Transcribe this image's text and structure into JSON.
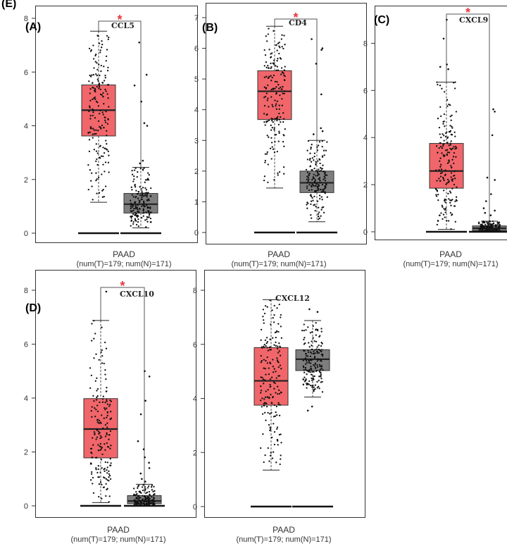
{
  "figure": {
    "letter": "(E)",
    "category": "PAAD",
    "sample_note": "(num(T)=179; num(N)=171)",
    "sig_symbol": "*",
    "colors": {
      "tumor": "#f1666a",
      "normal": "#7e7e7e",
      "sig": "#e8383d",
      "frame": "#333333",
      "points": "#111111"
    }
  },
  "chart_data": [
    {
      "type": "boxplot",
      "panel_label": "(A)",
      "gene": "CCL5",
      "ylim": [
        0,
        8
      ],
      "yticks": [
        0,
        2,
        4,
        6,
        8
      ],
      "significant": true,
      "groups": [
        {
          "group": "T",
          "n": 179,
          "min": 1.15,
          "q1": 3.62,
          "median": 4.58,
          "q3": 5.52,
          "max": 7.52,
          "outliers": [],
          "zero_line": true
        },
        {
          "group": "N",
          "n": 171,
          "min": 0.2,
          "q1": 0.75,
          "median": 1.08,
          "q3": 1.48,
          "max": 2.45,
          "outliers": [
            7.1,
            5.9,
            5.5,
            4.9,
            4.1,
            4.0,
            2.7,
            2.6
          ],
          "zero_line": true
        }
      ]
    },
    {
      "type": "boxplot",
      "panel_label": "(B)",
      "gene": "CD4",
      "ylim": [
        0,
        7
      ],
      "yticks": [
        0,
        1,
        2,
        3,
        4,
        5,
        6,
        7
      ],
      "significant": true,
      "groups": [
        {
          "group": "T",
          "n": 179,
          "min": 1.45,
          "q1": 3.68,
          "median": 4.6,
          "q3": 5.27,
          "max": 6.72,
          "outliers": [],
          "zero_line": true
        },
        {
          "group": "N",
          "n": 171,
          "min": 0.35,
          "q1": 1.3,
          "median": 1.62,
          "q3": 2.0,
          "max": 3.0,
          "outliers": [
            6.3,
            6.0,
            5.95,
            5.5,
            4.5,
            3.4,
            3.3,
            3.2
          ],
          "zero_line": true
        }
      ]
    },
    {
      "type": "boxplot",
      "panel_label": "(C)",
      "gene": "CXCL9",
      "ylim": [
        0,
        9
      ],
      "yticks": [
        0,
        2,
        4,
        6,
        8
      ],
      "significant": true,
      "groups": [
        {
          "group": "T",
          "n": 179,
          "min": 0.1,
          "q1": 1.85,
          "median": 2.58,
          "q3": 3.75,
          "max": 6.35,
          "outliers": [
            9.0,
            8.2,
            7.1,
            7.0,
            6.9
          ],
          "zero_line": true
        },
        {
          "group": "N",
          "n": 171,
          "min": 0.0,
          "q1": 0.05,
          "median": 0.15,
          "q3": 0.25,
          "max": 0.45,
          "outliers": [
            5.2,
            5.1,
            4.1,
            2.3,
            2.2,
            1.6,
            1.3,
            1.0,
            0.9,
            0.8,
            0.7
          ],
          "zero_line": true
        }
      ]
    },
    {
      "type": "boxplot",
      "panel_label": "(D)",
      "gene": "CXCL10",
      "ylim": [
        0,
        8
      ],
      "yticks": [
        0,
        2,
        4,
        6,
        8
      ],
      "significant": true,
      "groups": [
        {
          "group": "T",
          "n": 179,
          "min": 0.12,
          "q1": 1.78,
          "median": 2.85,
          "q3": 3.98,
          "max": 6.88,
          "outliers": [
            7.95
          ],
          "zero_line": true
        },
        {
          "group": "N",
          "n": 171,
          "min": 0.0,
          "q1": 0.08,
          "median": 0.18,
          "q3": 0.38,
          "max": 0.8,
          "outliers": [
            5.0,
            4.8,
            3.9,
            3.4,
            2.4,
            2.1,
            1.8,
            1.6,
            1.4,
            1.2,
            1.0,
            0.9
          ],
          "zero_line": true
        }
      ]
    },
    {
      "type": "boxplot",
      "panel_label": "",
      "gene": "CXCL12",
      "ylim": [
        0,
        8
      ],
      "yticks": [
        0,
        2,
        4,
        6,
        8
      ],
      "significant": false,
      "groups": [
        {
          "group": "T",
          "n": 179,
          "min": 1.35,
          "q1": 3.75,
          "median": 4.65,
          "q3": 5.88,
          "max": 7.65,
          "outliers": [],
          "zero_line": true
        },
        {
          "group": "N",
          "n": 171,
          "min": 4.05,
          "q1": 5.03,
          "median": 5.45,
          "q3": 5.8,
          "max": 6.88,
          "outliers": [
            7.3,
            7.2,
            3.7,
            3.55
          ],
          "zero_line": true
        }
      ]
    }
  ]
}
